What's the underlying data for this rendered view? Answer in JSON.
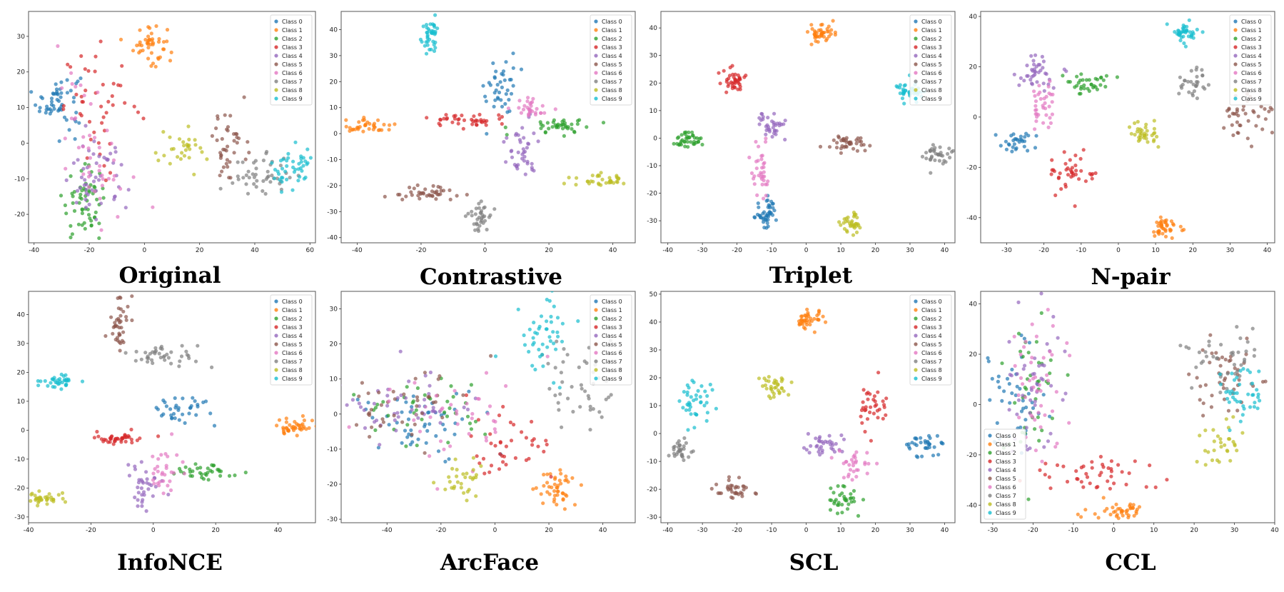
{
  "colors": [
    "#1f77b4",
    "#ff7f0e",
    "#2ca02c",
    "#d62728",
    "#9467bd",
    "#8c564b",
    "#e377c2",
    "#7f7f7f",
    "#bcbd22",
    "#17becf"
  ],
  "legend_labels": [
    "Class 0",
    "Class 1",
    "Class 2",
    "Class 3",
    "Class 4",
    "Class 5",
    "Class 6",
    "Class 7",
    "Class 8",
    "Class 9"
  ],
  "chart_data": [
    {
      "type": "scatter",
      "title": "Original",
      "xlim": [
        -42,
        62
      ],
      "ylim": [
        -28,
        37
      ],
      "xticks": [
        -40,
        -20,
        0,
        20,
        40,
        60
      ],
      "yticks": [
        -20,
        -10,
        0,
        10,
        20,
        30
      ],
      "legend": "top-right",
      "clusters": [
        {
          "c": 0,
          "x": -31,
          "y": 12,
          "sx": 4,
          "sy": 4,
          "n": 55
        },
        {
          "c": 1,
          "x": 2,
          "y": 28,
          "sx": 3,
          "sy": 3,
          "n": 45
        },
        {
          "c": 2,
          "x": -22,
          "y": -17,
          "sx": 4,
          "sy": 5,
          "n": 60
        },
        {
          "c": 3,
          "x": -15,
          "y": 10,
          "sx": 7,
          "sy": 8,
          "n": 45
        },
        {
          "c": 4,
          "x": -18,
          "y": -10,
          "sx": 6,
          "sy": 5,
          "n": 50
        },
        {
          "c": 5,
          "x": 31,
          "y": 0,
          "sx": 3,
          "sy": 6,
          "n": 40
        },
        {
          "c": 6,
          "x": -18,
          "y": 0,
          "sx": 7,
          "sy": 10,
          "n": 45
        },
        {
          "c": 7,
          "x": 42,
          "y": -9,
          "sx": 5,
          "sy": 3,
          "n": 45
        },
        {
          "c": 8,
          "x": 14,
          "y": -3,
          "sx": 6,
          "sy": 3,
          "n": 30
        },
        {
          "c": 9,
          "x": 54,
          "y": -7,
          "sx": 4,
          "sy": 3,
          "n": 45
        }
      ]
    },
    {
      "type": "scatter",
      "title": "Contrastive",
      "xlim": [
        -45,
        47
      ],
      "ylim": [
        -42,
        47
      ],
      "xticks": [
        -40,
        -20,
        0,
        20,
        40
      ],
      "yticks": [
        -40,
        -30,
        -20,
        -10,
        0,
        10,
        20,
        30,
        40
      ],
      "legend": "top-right",
      "clusters": [
        {
          "c": 0,
          "x": 5,
          "y": 18,
          "sx": 2.5,
          "sy": 6,
          "n": 40
        },
        {
          "c": 1,
          "x": -38,
          "y": 3,
          "sx": 5,
          "sy": 1.5,
          "n": 40
        },
        {
          "c": 2,
          "x": 23,
          "y": 3,
          "sx": 5,
          "sy": 1.5,
          "n": 40
        },
        {
          "c": 3,
          "x": -5,
          "y": 5,
          "sx": 6,
          "sy": 1.5,
          "n": 40
        },
        {
          "c": 4,
          "x": 11,
          "y": -6,
          "sx": 2.5,
          "sy": 5,
          "n": 40
        },
        {
          "c": 5,
          "x": -18,
          "y": -23,
          "sx": 6,
          "sy": 1.5,
          "n": 40
        },
        {
          "c": 6,
          "x": 14,
          "y": 10,
          "sx": 3,
          "sy": 2.5,
          "n": 30
        },
        {
          "c": 7,
          "x": -2,
          "y": -32,
          "sx": 2,
          "sy": 3,
          "n": 35
        },
        {
          "c": 8,
          "x": 37,
          "y": -18,
          "sx": 4,
          "sy": 1.2,
          "n": 35
        },
        {
          "c": 9,
          "x": -17,
          "y": 38,
          "sx": 1.5,
          "sy": 3,
          "n": 40
        }
      ]
    },
    {
      "type": "scatter",
      "title": "Triplet",
      "xlim": [
        -42,
        43
      ],
      "ylim": [
        -38,
        46
      ],
      "xticks": [
        -40,
        -30,
        -20,
        -10,
        0,
        10,
        20,
        30,
        40
      ],
      "yticks": [
        -30,
        -20,
        -10,
        0,
        10,
        20,
        30,
        40
      ],
      "legend": "top-right",
      "clusters": [
        {
          "c": 0,
          "x": -11,
          "y": -27,
          "sx": 2,
          "sy": 3,
          "n": 45
        },
        {
          "c": 1,
          "x": 4,
          "y": 38,
          "sx": 2,
          "sy": 1.8,
          "n": 45
        },
        {
          "c": 2,
          "x": -34,
          "y": -1,
          "sx": 1.8,
          "sy": 1.8,
          "n": 40
        },
        {
          "c": 3,
          "x": -21,
          "y": 21,
          "sx": 2,
          "sy": 2,
          "n": 40
        },
        {
          "c": 4,
          "x": -10,
          "y": 4,
          "sx": 2,
          "sy": 2.5,
          "n": 35
        },
        {
          "c": 5,
          "x": 12,
          "y": -2,
          "sx": 3,
          "sy": 1.5,
          "n": 40
        },
        {
          "c": 6,
          "x": -13,
          "y": -12,
          "sx": 1.5,
          "sy": 6,
          "n": 35
        },
        {
          "c": 7,
          "x": 38,
          "y": -6,
          "sx": 2,
          "sy": 2,
          "n": 35
        },
        {
          "c": 8,
          "x": 13,
          "y": -31,
          "sx": 1.5,
          "sy": 2,
          "n": 35
        },
        {
          "c": 9,
          "x": 30,
          "y": 17,
          "sx": 2,
          "sy": 1.8,
          "n": 40
        }
      ]
    },
    {
      "type": "scatter",
      "title": "N-pair",
      "xlim": [
        -37,
        42
      ],
      "ylim": [
        -50,
        42
      ],
      "xticks": [
        -30,
        -20,
        -10,
        0,
        10,
        20,
        30,
        40
      ],
      "yticks": [
        -40,
        -20,
        0,
        20,
        40
      ],
      "legend": "top-right",
      "clusters": [
        {
          "c": 0,
          "x": -28,
          "y": -10,
          "sx": 3,
          "sy": 2,
          "n": 30
        },
        {
          "c": 1,
          "x": 12,
          "y": -45,
          "sx": 2,
          "sy": 2.5,
          "n": 40
        },
        {
          "c": 2,
          "x": -8,
          "y": 14,
          "sx": 3,
          "sy": 2.5,
          "n": 35
        },
        {
          "c": 3,
          "x": -12,
          "y": -22,
          "sx": 3,
          "sy": 4,
          "n": 40
        },
        {
          "c": 4,
          "x": -22,
          "y": 17,
          "sx": 3,
          "sy": 3,
          "n": 40
        },
        {
          "c": 5,
          "x": 34,
          "y": 0,
          "sx": 3,
          "sy": 5,
          "n": 40
        },
        {
          "c": 6,
          "x": -20,
          "y": 5,
          "sx": 2,
          "sy": 7,
          "n": 35
        },
        {
          "c": 7,
          "x": 20,
          "y": 14,
          "sx": 2,
          "sy": 3,
          "n": 30
        },
        {
          "c": 8,
          "x": 7,
          "y": -7,
          "sx": 2,
          "sy": 2.5,
          "n": 35
        },
        {
          "c": 9,
          "x": 18,
          "y": 33,
          "sx": 2,
          "sy": 2.5,
          "n": 40
        }
      ]
    },
    {
      "type": "scatter",
      "title": "InfoNCE",
      "xlim": [
        -40,
        52
      ],
      "ylim": [
        -32,
        48
      ],
      "xticks": [
        -40,
        -20,
        0,
        20,
        40
      ],
      "yticks": [
        -30,
        -20,
        -10,
        0,
        10,
        20,
        30,
        40
      ],
      "legend": "top-right",
      "clusters": [
        {
          "c": 0,
          "x": 10,
          "y": 8,
          "sx": 4,
          "sy": 3,
          "n": 35
        },
        {
          "c": 1,
          "x": 45,
          "y": 1,
          "sx": 3,
          "sy": 1.5,
          "n": 40
        },
        {
          "c": 2,
          "x": 15,
          "y": -14,
          "sx": 5,
          "sy": 1.5,
          "n": 35
        },
        {
          "c": 3,
          "x": -10,
          "y": -3,
          "sx": 6,
          "sy": 1,
          "n": 40
        },
        {
          "c": 4,
          "x": -3,
          "y": -20,
          "sx": 3,
          "sy": 5,
          "n": 35
        },
        {
          "c": 5,
          "x": -11,
          "y": 37,
          "sx": 1.5,
          "sy": 5,
          "n": 40
        },
        {
          "c": 6,
          "x": 3,
          "y": -14,
          "sx": 3,
          "sy": 4,
          "n": 30
        },
        {
          "c": 7,
          "x": 1,
          "y": 26,
          "sx": 6,
          "sy": 2,
          "n": 40
        },
        {
          "c": 8,
          "x": -34,
          "y": -24,
          "sx": 3,
          "sy": 1.2,
          "n": 35
        },
        {
          "c": 9,
          "x": -31,
          "y": 17,
          "sx": 3,
          "sy": 1.2,
          "n": 35
        }
      ]
    },
    {
      "type": "scatter",
      "title": "ArcFace",
      "xlim": [
        -57,
        52
      ],
      "ylim": [
        -31,
        35
      ],
      "xticks": [
        -40,
        -20,
        0,
        20,
        40
      ],
      "yticks": [
        -30,
        -20,
        -10,
        0,
        10,
        20,
        30
      ],
      "legend": "top-right",
      "clusters": [
        {
          "c": 0,
          "x": -28,
          "y": -2,
          "sx": 12,
          "sy": 5,
          "n": 50
        },
        {
          "c": 1,
          "x": 22,
          "y": -21,
          "sx": 4,
          "sy": 3,
          "n": 45
        },
        {
          "c": 2,
          "x": -30,
          "y": 0,
          "sx": 14,
          "sy": 5,
          "n": 40
        },
        {
          "c": 3,
          "x": 5,
          "y": -9,
          "sx": 7,
          "sy": 4,
          "n": 40
        },
        {
          "c": 4,
          "x": -35,
          "y": 4,
          "sx": 12,
          "sy": 5,
          "n": 45
        },
        {
          "c": 5,
          "x": -33,
          "y": 4,
          "sx": 12,
          "sy": 5,
          "n": 40
        },
        {
          "c": 6,
          "x": -20,
          "y": 0,
          "sx": 14,
          "sy": 6,
          "n": 40
        },
        {
          "c": 7,
          "x": 33,
          "y": 10,
          "sx": 7,
          "sy": 8,
          "n": 45
        },
        {
          "c": 8,
          "x": -12,
          "y": -18,
          "sx": 4,
          "sy": 3,
          "n": 30
        },
        {
          "c": 9,
          "x": 18,
          "y": 22,
          "sx": 5,
          "sy": 6,
          "n": 45
        }
      ]
    },
    {
      "type": "scatter",
      "title": "SCL",
      "xlim": [
        -42,
        43
      ],
      "ylim": [
        -32,
        51
      ],
      "xticks": [
        -40,
        -30,
        -20,
        -10,
        0,
        10,
        20,
        30,
        40
      ],
      "yticks": [
        -30,
        -20,
        -10,
        0,
        10,
        20,
        30,
        40,
        50
      ],
      "legend": "top-right",
      "clusters": [
        {
          "c": 0,
          "x": 34,
          "y": -4,
          "sx": 3,
          "sy": 2,
          "n": 35
        },
        {
          "c": 1,
          "x": 1,
          "y": 41,
          "sx": 2,
          "sy": 2,
          "n": 40
        },
        {
          "c": 2,
          "x": 10,
          "y": -24,
          "sx": 2,
          "sy": 2,
          "n": 35
        },
        {
          "c": 3,
          "x": 19,
          "y": 10,
          "sx": 2,
          "sy": 3,
          "n": 35
        },
        {
          "c": 4,
          "x": 5,
          "y": -4,
          "sx": 3,
          "sy": 2,
          "n": 35
        },
        {
          "c": 5,
          "x": -21,
          "y": -20,
          "sx": 2.5,
          "sy": 2,
          "n": 35
        },
        {
          "c": 6,
          "x": 14,
          "y": -11,
          "sx": 3,
          "sy": 3,
          "n": 30
        },
        {
          "c": 7,
          "x": -36,
          "y": -6,
          "sx": 2,
          "sy": 2,
          "n": 30
        },
        {
          "c": 8,
          "x": -9,
          "y": 17,
          "sx": 2,
          "sy": 2,
          "n": 35
        },
        {
          "c": 9,
          "x": -32,
          "y": 11,
          "sx": 2,
          "sy": 4,
          "n": 40
        }
      ]
    },
    {
      "type": "scatter",
      "title": "CCL",
      "xlim": [
        -33,
        40
      ],
      "ylim": [
        -47,
        45
      ],
      "xticks": [
        -30,
        -20,
        -10,
        0,
        10,
        20,
        30,
        40
      ],
      "yticks": [
        -40,
        -20,
        0,
        20,
        40
      ],
      "legend": "bottom-left",
      "clusters": [
        {
          "c": 0,
          "x": -24,
          "y": 0,
          "sx": 4,
          "sy": 12,
          "n": 45
        },
        {
          "c": 1,
          "x": 2,
          "y": -42,
          "sx": 4,
          "sy": 2,
          "n": 40
        },
        {
          "c": 2,
          "x": -20,
          "y": 5,
          "sx": 3,
          "sy": 14,
          "n": 40
        },
        {
          "c": 3,
          "x": -5,
          "y": -28,
          "sx": 8,
          "sy": 3,
          "n": 45
        },
        {
          "c": 4,
          "x": -20,
          "y": 10,
          "sx": 4,
          "sy": 16,
          "n": 45
        },
        {
          "c": 5,
          "x": 27,
          "y": 10,
          "sx": 4,
          "sy": 8,
          "n": 45
        },
        {
          "c": 6,
          "x": -19,
          "y": 5,
          "sx": 4,
          "sy": 16,
          "n": 45
        },
        {
          "c": 7,
          "x": 27,
          "y": 18,
          "sx": 5,
          "sy": 6,
          "n": 40
        },
        {
          "c": 8,
          "x": 27,
          "y": -15,
          "sx": 3,
          "sy": 5,
          "n": 30
        },
        {
          "c": 9,
          "x": 33,
          "y": 5,
          "sx": 3,
          "sy": 7,
          "n": 40
        }
      ]
    }
  ]
}
